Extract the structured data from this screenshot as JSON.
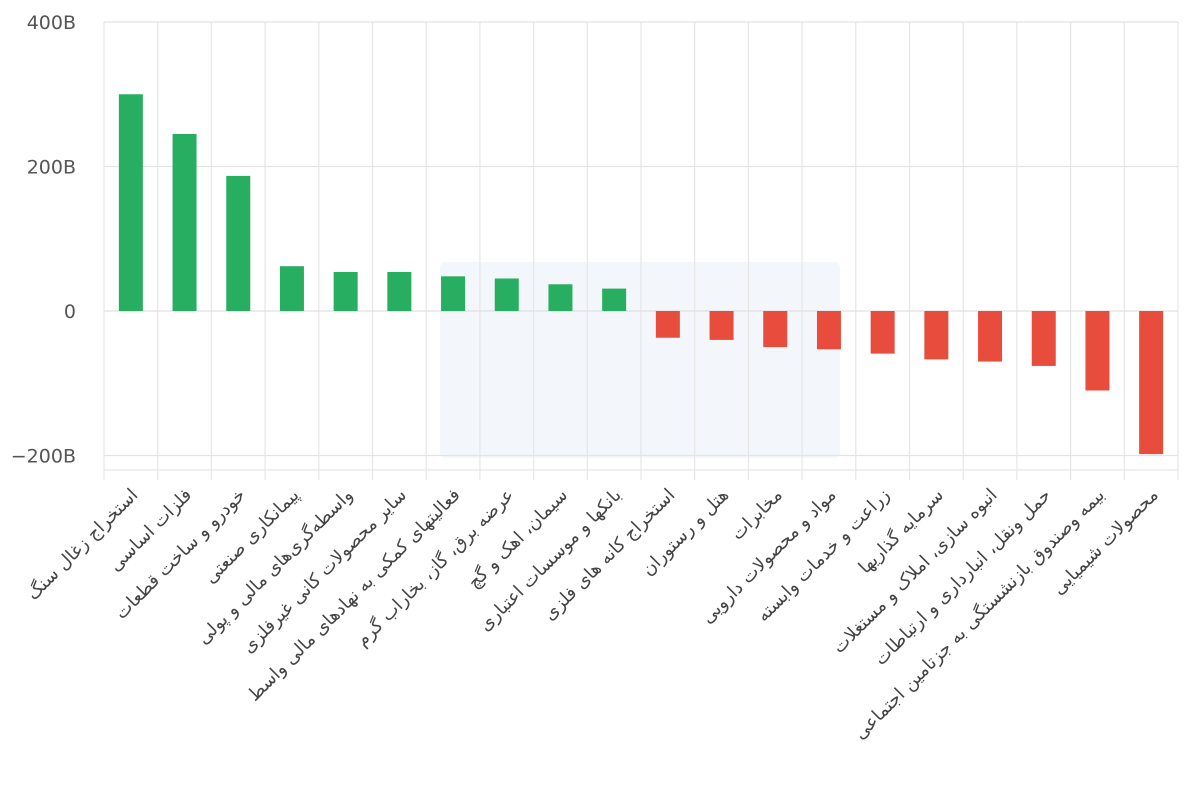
{
  "chart_data": {
    "type": "bar",
    "categories": [
      "استخراج زغال سنگ",
      "فلزات اساسی",
      "خودرو و ساخت قطعات",
      "پیمانکاری صنعتی",
      "واسطه‌گری‌های مالی و پولی",
      "سایر محصولات کانی غیرفلزی",
      "فعالیتهای کمکی به نهادهای مالی واسط",
      "عرضه برق، گاز، بخاراب گرم",
      "سیمان، اهک و گچ",
      "بانکها و موسسات اعتباری",
      "استخراج کانه های فلزی",
      "هتل و رستوران",
      "مخابرات",
      "مواد و محصولات دارویی",
      "زراعت و خدمات وابسته",
      "سرمایه گذاریها",
      "انبوه سازی، املاک و مستغلات",
      "حمل ونقل، انبارداری و ارتباطات",
      "بیمه وصندوق بازنشستگی به جزتامین اجتماعی",
      "محصولات شیمیایی"
    ],
    "values": [
      300,
      245,
      187,
      62,
      54,
      54,
      48,
      45,
      37,
      31,
      -37,
      -40,
      -50,
      -53,
      -59,
      -67,
      -70,
      -76,
      -110,
      -198
    ],
    "ylim": [
      -220,
      400
    ],
    "yticks": [
      400,
      200,
      0,
      -200
    ],
    "ytick_labels": [
      "400B",
      "200B",
      "0",
      "−200B"
    ],
    "title": "",
    "xlabel": "",
    "ylabel": "",
    "grid": true,
    "colors": {
      "positive": "#27ae60",
      "negative": "#e74c3c",
      "grid": "#e4e4e4",
      "text": "#555555"
    }
  }
}
